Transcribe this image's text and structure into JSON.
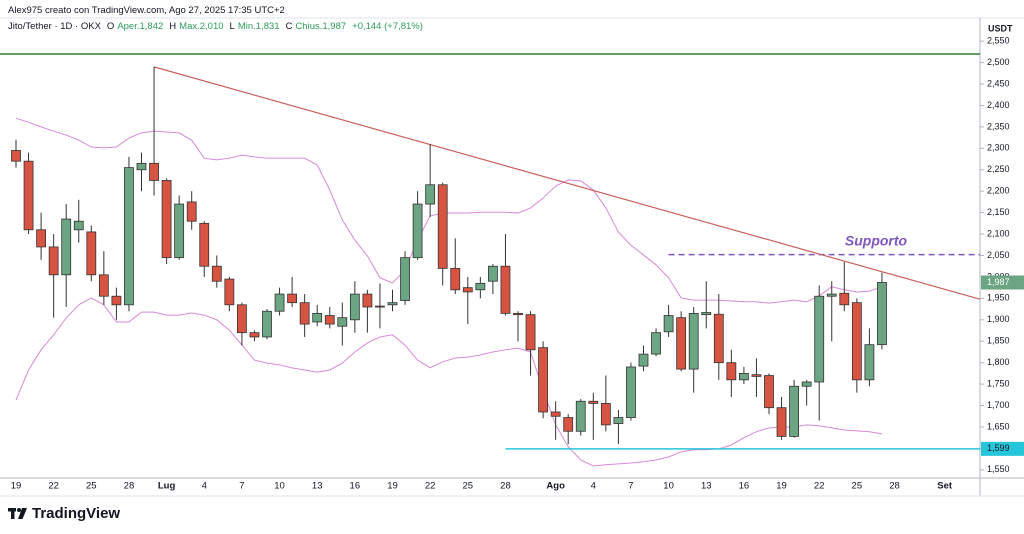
{
  "header": {
    "author_line": "Alex975 creato con TradingView.com, Ago 27, 2025 17:35 UTC+2",
    "symbol": "Jito/Tether · 1D · OKX",
    "ohlc": [
      {
        "key": "O",
        "text": "Aper.1,842"
      },
      {
        "key": "H",
        "text": "Max.2,010"
      },
      {
        "key": "L",
        "text": "Min.1,831"
      },
      {
        "key": "C",
        "text": "Chius.1,987"
      }
    ],
    "change": "+0,144 (+7,81%)"
  },
  "chart_data": {
    "type": "candlestick",
    "y_unit": "USDT",
    "categories": [
      "19",
      null,
      null,
      "22",
      null,
      null,
      "25",
      null,
      null,
      "28",
      null,
      null,
      "Lug",
      null,
      null,
      "4",
      null,
      null,
      "7",
      null,
      null,
      "10",
      null,
      null,
      "13",
      null,
      null,
      "16",
      null,
      null,
      "19",
      null,
      null,
      "22",
      null,
      null,
      "25",
      null,
      null,
      "28",
      null,
      null,
      null,
      "Ago",
      null,
      null,
      "4",
      null,
      null,
      "7",
      null,
      null,
      "10",
      null,
      null,
      "13",
      null,
      null,
      "16",
      null,
      null,
      "19",
      null,
      null,
      "22",
      null,
      null,
      "25",
      null,
      null,
      "28",
      null,
      null,
      null,
      "Set",
      null
    ],
    "open": [
      2295,
      2270,
      2110,
      2070,
      2005,
      2110,
      2105,
      2005,
      1955,
      1935,
      2250,
      2265,
      2225,
      2045,
      2175,
      2125,
      2025,
      1995,
      1935,
      1870,
      1860,
      1920,
      1960,
      1940,
      1895,
      1910,
      1885,
      1900,
      1960,
      1932,
      1935,
      1945,
      2045,
      2170,
      2215,
      2020,
      1975,
      1970,
      1990,
      2025,
      1915,
      1912,
      1835,
      1685,
      1672,
      1640,
      1710,
      1705,
      1658,
      1672,
      1792,
      1820,
      1872,
      1905,
      1785,
      1912,
      1913,
      1800,
      1760,
      1772,
      1770,
      1695,
      1628,
      1745,
      1755,
      1955,
      1962,
      1940,
      1760,
      1842,
      null,
      null,
      null,
      null,
      null,
      null
    ],
    "high": [
      2320,
      2290,
      2150,
      2100,
      2170,
      2180,
      2120,
      2060,
      1975,
      2280,
      2290,
      2490,
      2230,
      2190,
      2200,
      2130,
      2050,
      2000,
      1940,
      1875,
      1925,
      1975,
      2000,
      1960,
      1935,
      1930,
      1940,
      1990,
      1970,
      1985,
      1970,
      2060,
      2200,
      2310,
      2220,
      2090,
      2000,
      2000,
      2030,
      2100,
      1920,
      1920,
      1850,
      1710,
      1680,
      1715,
      1730,
      1770,
      1690,
      1800,
      1840,
      1880,
      1935,
      1920,
      1930,
      1990,
      1960,
      1830,
      1790,
      1810,
      1775,
      1720,
      1760,
      1760,
      1980,
      1990,
      2035,
      1950,
      1880,
      2010,
      null,
      null,
      null,
      null,
      null,
      null
    ],
    "low": [
      2255,
      2100,
      2040,
      1905,
      1930,
      2080,
      1990,
      1935,
      1900,
      1920,
      2200,
      2190,
      2030,
      2040,
      2110,
      2000,
      1975,
      1920,
      1840,
      1850,
      1855,
      1910,
      1930,
      1860,
      1885,
      1880,
      1840,
      1870,
      1870,
      1880,
      1920,
      1935,
      2040,
      2140,
      1980,
      1960,
      1890,
      1950,
      1960,
      1910,
      1850,
      1770,
      1670,
      1620,
      1610,
      1630,
      1620,
      1640,
      1610,
      1665,
      1780,
      1815,
      1860,
      1780,
      1730,
      1880,
      1760,
      1720,
      1750,
      1720,
      1680,
      1620,
      1625,
      1700,
      1665,
      1850,
      1920,
      1730,
      1745,
      1831,
      null,
      null,
      null,
      null,
      null,
      null
    ],
    "close": [
      2270,
      2110,
      2070,
      2005,
      2135,
      2130,
      2005,
      1955,
      1935,
      2255,
      2265,
      2225,
      2045,
      2170,
      2130,
      2025,
      1990,
      1935,
      1870,
      1860,
      1920,
      1960,
      1940,
      1890,
      1915,
      1890,
      1905,
      1960,
      1930,
      1930,
      1940,
      2045,
      2170,
      2215,
      2020,
      1970,
      1965,
      1985,
      2025,
      1915,
      1912,
      1830,
      1685,
      1675,
      1640,
      1710,
      1705,
      1655,
      1672,
      1790,
      1820,
      1870,
      1910,
      1785,
      1915,
      1917,
      1800,
      1760,
      1775,
      1768,
      1695,
      1628,
      1745,
      1755,
      1955,
      1960,
      1935,
      1760,
      1842,
      1987,
      null,
      null,
      null,
      null,
      null,
      null
    ],
    "up_color": "#6ba583",
    "down_color": "#d75442",
    "last_label": "1,987",
    "bands": {
      "color": "#d78ad8",
      "upper": [
        2370,
        2361,
        2350,
        2340,
        2331,
        2319,
        2303,
        2301,
        2303,
        2324,
        2336,
        2340,
        2338,
        2336,
        2319,
        2277,
        2273,
        2277,
        2284,
        2280,
        2277,
        2277,
        2277,
        2277,
        2261,
        2203,
        2133,
        2086,
        2049,
        1998,
        1986,
        2016,
        2086,
        2142,
        2149,
        2149,
        2149,
        2151,
        2151,
        2151,
        2149,
        2161,
        2184,
        2212,
        2226,
        2224,
        2203,
        2161,
        2105,
        2074,
        2051,
        2028,
        1998,
        1951,
        1946,
        1946,
        1946,
        1944,
        1942,
        1942,
        1939,
        1942,
        1946,
        1942,
        1956,
        1977,
        1970,
        1965,
        1967,
        1977,
        null,
        null,
        null,
        null,
        null,
        null
      ],
      "lower": [
        1713,
        1783,
        1830,
        1865,
        1904,
        1935,
        1951,
        1935,
        1895,
        1895,
        1918,
        1918,
        1911,
        1911,
        1916,
        1911,
        1900,
        1876,
        1841,
        1806,
        1799,
        1795,
        1788,
        1783,
        1778,
        1783,
        1799,
        1825,
        1846,
        1860,
        1865,
        1841,
        1806,
        1788,
        1802,
        1811,
        1813,
        1818,
        1825,
        1830,
        1834,
        1825,
        1736,
        1655,
        1604,
        1573,
        1559,
        1562,
        1564,
        1566,
        1569,
        1573,
        1580,
        1592,
        1597,
        1597,
        1599,
        1608,
        1625,
        1639,
        1648,
        1650,
        1650,
        1655,
        1653,
        1648,
        1643,
        1641,
        1639,
        1634,
        null,
        null,
        null,
        null,
        null,
        null
      ]
    },
    "trend_line": {
      "x": [
        11,
        76.8
      ],
      "values": [
        2490,
        1948
      ],
      "color": "#c9605d"
    },
    "hlines": [
      {
        "value": 2520,
        "color": "#2e7d32",
        "from": 0
      },
      {
        "value": 2052,
        "color": "#7e57c2",
        "from": 52,
        "dashed": true,
        "text": "Supporto"
      },
      {
        "value": 1599,
        "color": "#26c6da",
        "from": 39,
        "label": "1,599"
      }
    ],
    "ylim": [
      1531,
      2604
    ],
    "yticks": [
      {
        "value": 1550,
        "label": "1,550"
      },
      {
        "value": 1600,
        "label": "1,600"
      },
      {
        "value": 1650,
        "label": "1,650"
      },
      {
        "value": 1700,
        "label": "1,700"
      },
      {
        "value": 1750,
        "label": "1,750"
      },
      {
        "value": 1800,
        "label": "1,800"
      },
      {
        "value": 1850,
        "label": "1,850"
      },
      {
        "value": 1900,
        "label": "1,900"
      },
      {
        "value": 1950,
        "label": "1,950"
      },
      {
        "value": 2000,
        "label": "2,000"
      },
      {
        "value": 2050,
        "label": "2,050"
      },
      {
        "value": 2100,
        "label": "2,100"
      },
      {
        "value": 2150,
        "label": "2,150"
      },
      {
        "value": 2200,
        "label": "2,200"
      },
      {
        "value": 2250,
        "label": "2,250"
      },
      {
        "value": 2300,
        "label": "2,300"
      },
      {
        "value": 2350,
        "label": "2,350"
      },
      {
        "value": 2400,
        "label": "2,400"
      },
      {
        "value": 2450,
        "label": "2,450"
      },
      {
        "value": 2500,
        "label": "2,500"
      },
      {
        "value": 2550,
        "label": "2,550"
      }
    ]
  },
  "footer": {
    "brand": "TradingView"
  }
}
